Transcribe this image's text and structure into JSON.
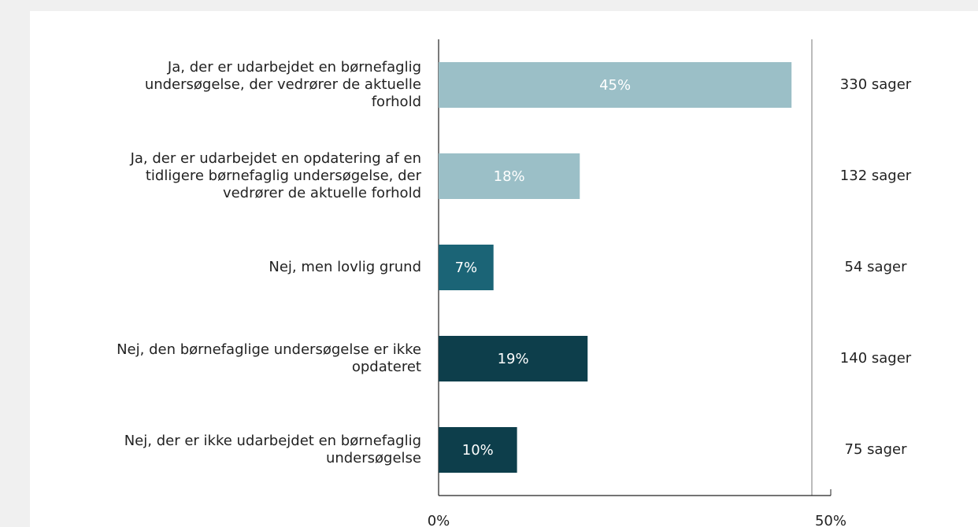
{
  "chart_data": {
    "type": "barh",
    "categories": [
      "Ja, der er udarbejdet en børnefaglig\nundersøgelse, der vedrører de aktuelle\nforhold",
      "Ja, der er udarbejdet en opdatering af en\ntidligere børnefaglig undersøgelse, der\nvedrører de aktuelle forhold",
      "Nej, men lovlig grund",
      "Nej, den børnefaglige undersøgelse er ikke\nopdateret",
      "Nej, der er ikke udarbejdet en børnefaglig\nundersøgelse"
    ],
    "values": [
      45,
      18,
      7,
      19,
      10
    ],
    "value_labels": [
      "45%",
      "18%",
      "7%",
      "19%",
      "10%"
    ],
    "colors": [
      "#9bbfc7",
      "#9bbfc7",
      "#1b6476",
      "#0d3e4b",
      "#0d3e4b"
    ],
    "case_labels": [
      "330 sager",
      "132 sager",
      "54 sager",
      "140 sager",
      "75 sager"
    ],
    "xlim": [
      0,
      50
    ],
    "xticks": [
      {
        "value": 0,
        "label": "0%"
      },
      {
        "value": 50,
        "label": "50%"
      }
    ]
  }
}
